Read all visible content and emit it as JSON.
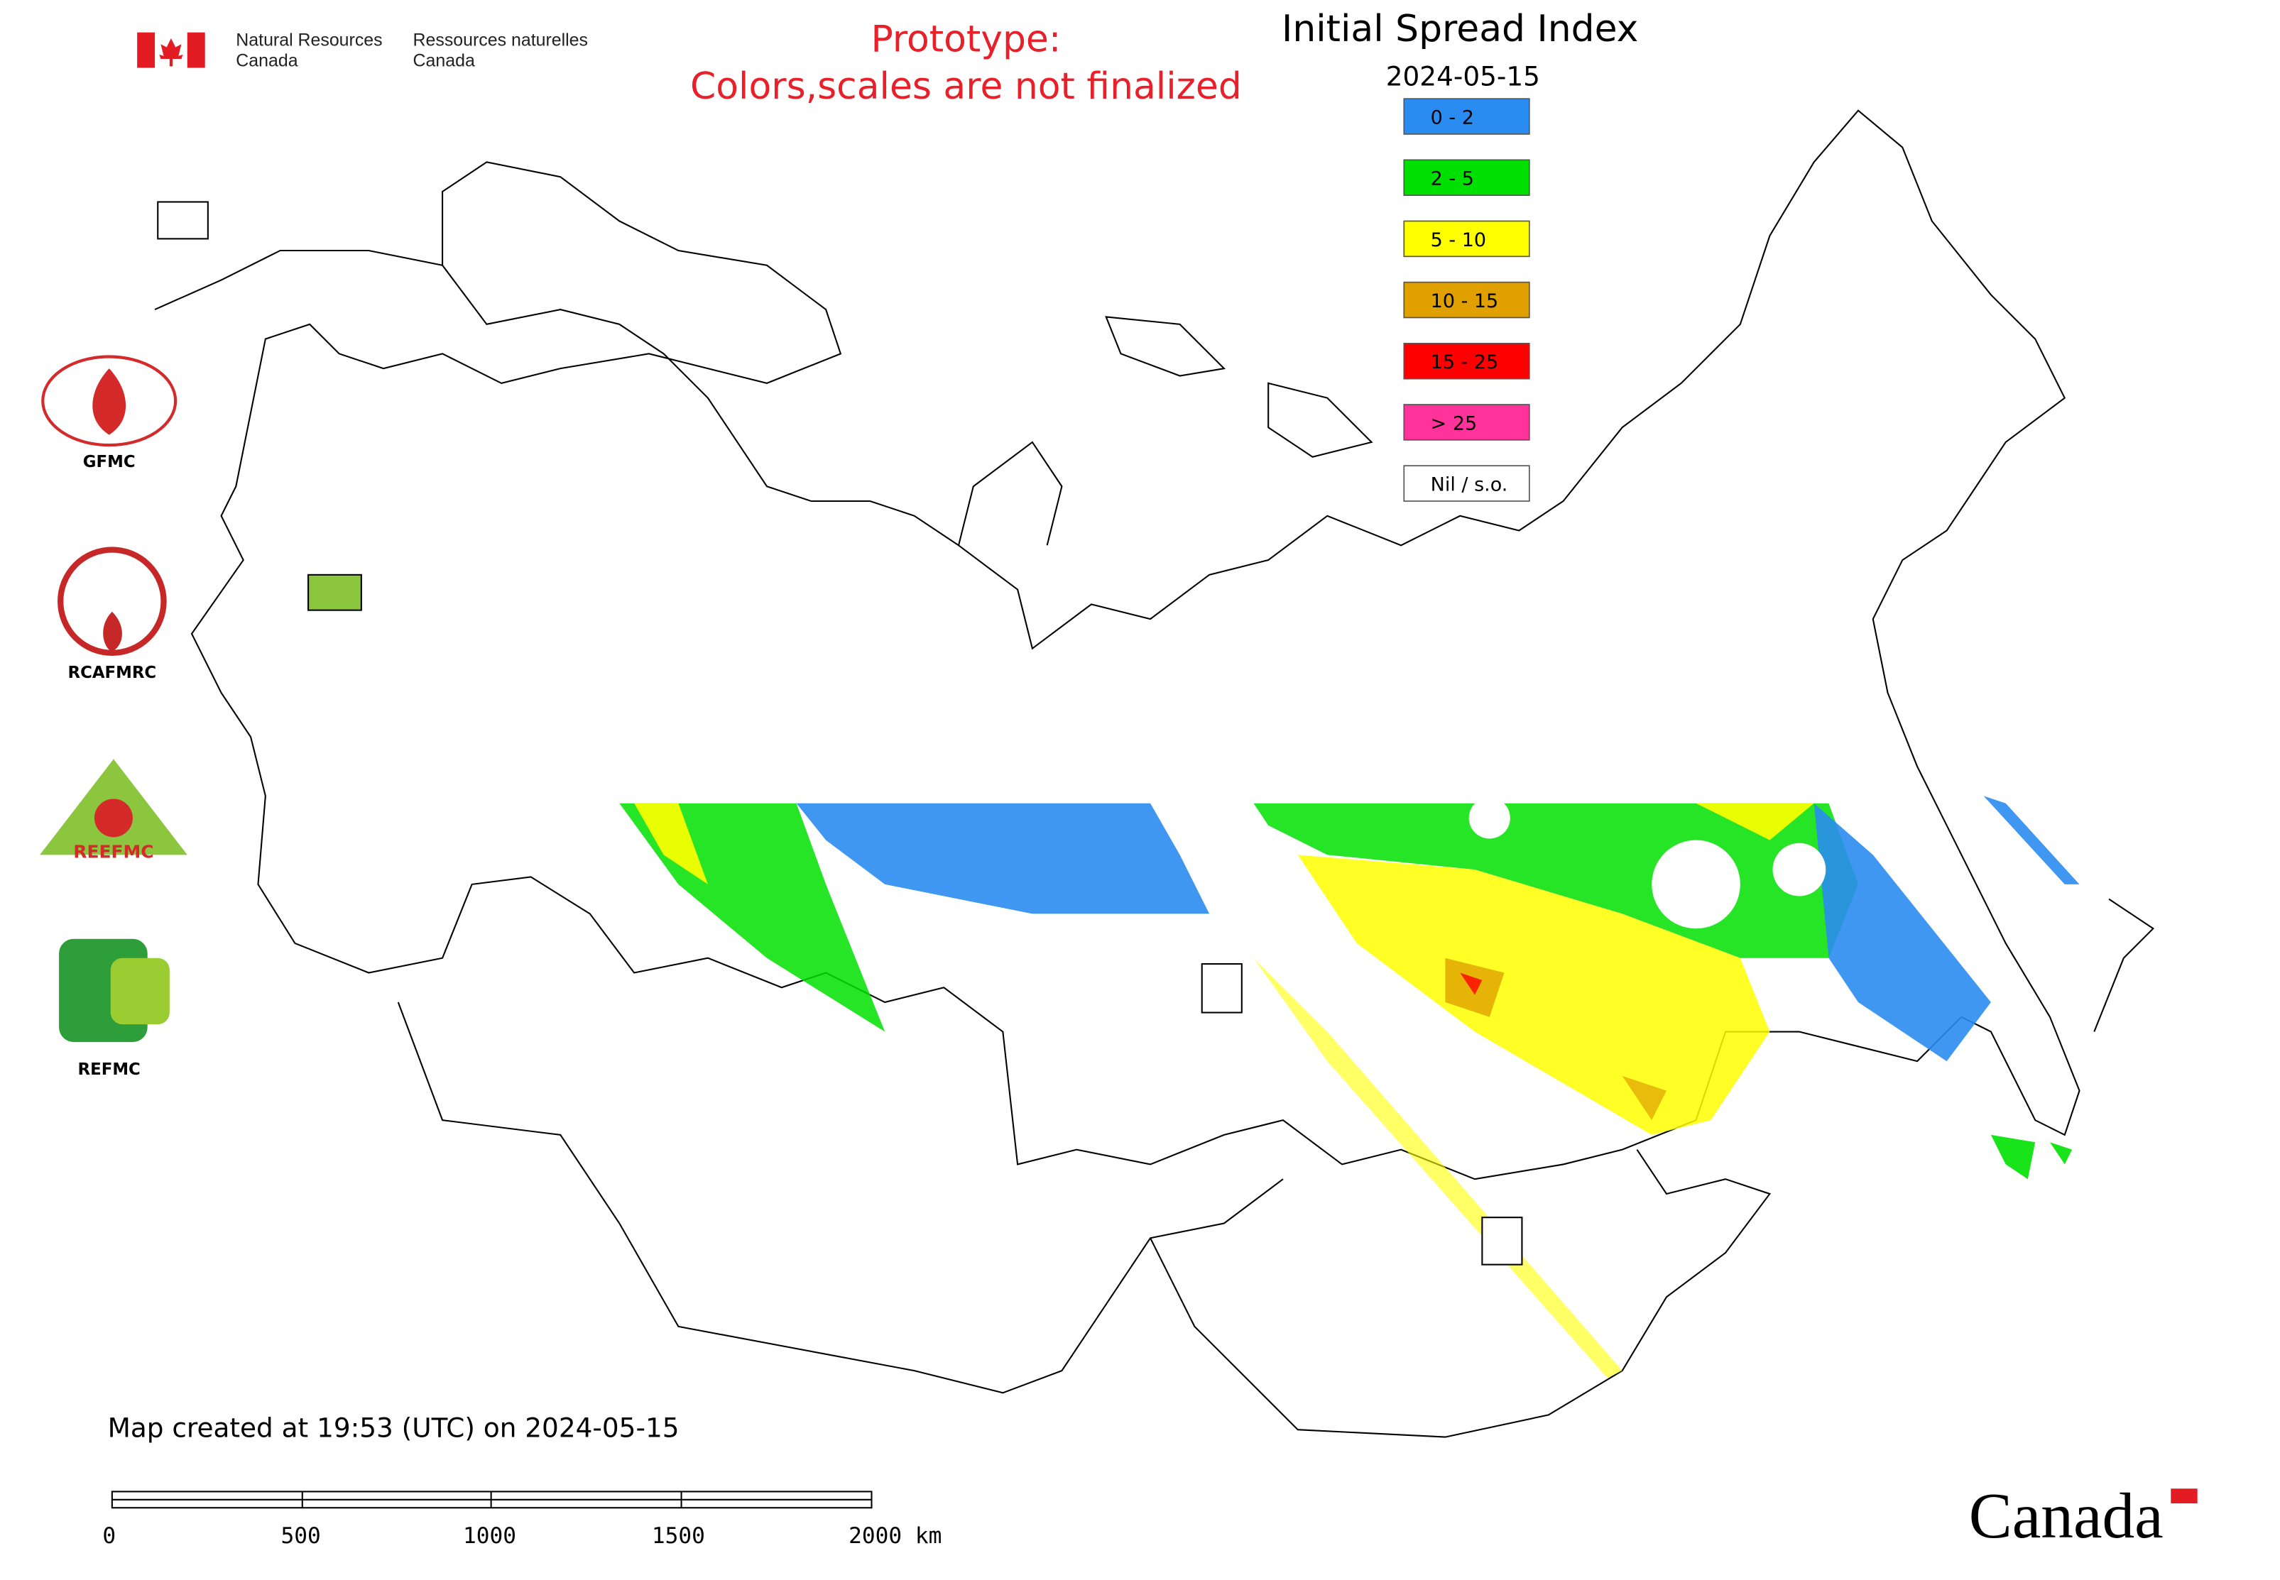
{
  "agency": {
    "en": [
      "Natural Resources",
      "Canada"
    ],
    "fr": [
      "Ressources naturelles",
      "Canada"
    ]
  },
  "notice": [
    "Prototype:",
    "Colors,scales are not finalized"
  ],
  "title": "Initial Spread Index",
  "date": "2024-05-15",
  "legend": [
    {
      "label": "0 - 2",
      "color": "#2a8cf0"
    },
    {
      "label": "2 - 5",
      "color": "#00e000"
    },
    {
      "label": "5 - 10",
      "color": "#ffff00"
    },
    {
      "label": "10 - 15",
      "color": "#e0a000"
    },
    {
      "label": "15 - 25",
      "color": "#ff0000"
    },
    {
      "label": "> 25",
      "color": "#ff3399"
    },
    {
      "label": "Nil / s.o.",
      "color": "#ffffff"
    }
  ],
  "logos": [
    "GFMC",
    "RCAFMRC",
    "REEFMC",
    "REFMC"
  ],
  "footer": {
    "created": "Map created at 19:53 (UTC) on 2024-05-15",
    "scale_labels": [
      "0",
      "500",
      "1000",
      "1500",
      "2000 km"
    ],
    "wordmark": "Canada"
  }
}
